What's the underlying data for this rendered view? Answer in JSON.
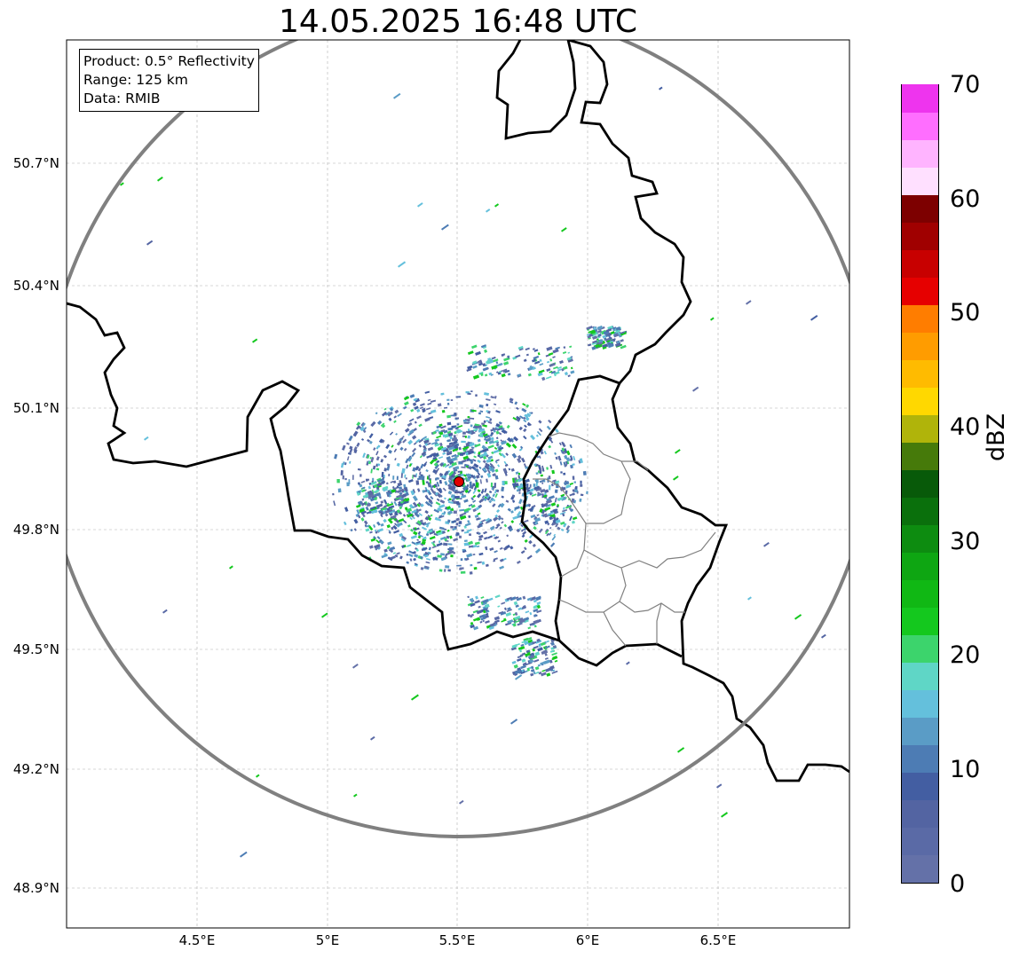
{
  "title": "14.05.2025 16:48 UTC",
  "info": {
    "product": "Product: 0.5° Reflectivity",
    "range": "Range: 125 km",
    "data": "Data: RMIB"
  },
  "map": {
    "lon_range": [
      4.0,
      7.0
    ],
    "lat_range": [
      48.8,
      50.99
    ],
    "lat_ticks": [
      "50.7°N",
      "50.4°N",
      "50.1°N",
      "49.8°N",
      "49.5°N",
      "49.2°N",
      "48.9°N"
    ],
    "lon_ticks": [
      "4.5°E",
      "5°E",
      "5.5°E",
      "6°E",
      "6.5°E"
    ],
    "radar_site": {
      "lon": 5.505,
      "lat": 49.914,
      "color": "#e00000"
    },
    "range_ring_color": "#808080",
    "gridlines": true
  },
  "colorbar": {
    "label": "dBZ",
    "ticks": [
      "0",
      "10",
      "20",
      "30",
      "40",
      "50",
      "60",
      "70"
    ],
    "min": 0,
    "max": 70,
    "step": 2.5,
    "colors": [
      "#6471a8",
      "#5a6aa6",
      "#5364a2",
      "#435ea2",
      "#4d7cb4",
      "#5a9cc6",
      "#64c0dc",
      "#5fd6c6",
      "#3cd46c",
      "#14c81e",
      "#10b814",
      "#0ea612",
      "#0d8c10",
      "#0a700c",
      "#085a09",
      "#467a0a",
      "#b0b40a",
      "#ffd800",
      "#ffbb00",
      "#ff9c00",
      "#ff7d00",
      "#e60000",
      "#c80000",
      "#a00000",
      "#7d0000",
      "#ffe0ff",
      "#ffb4ff",
      "#ff6eff",
      "#ee34ee"
    ]
  }
}
